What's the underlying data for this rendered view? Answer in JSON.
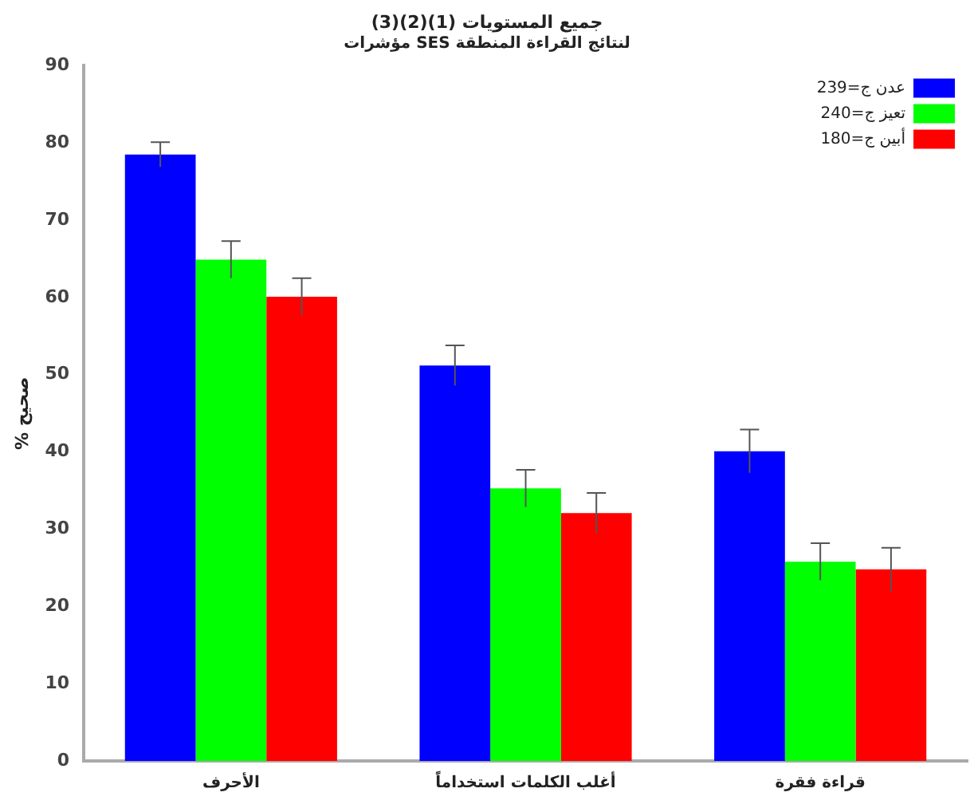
{
  "chart_data": {
    "type": "bar",
    "title": "جميع المستويات (1)(2)(3)",
    "subtitle": "مؤشرات SES لنتائج القراءة المنطقة",
    "ylabel": "% صحيح",
    "categories": [
      "الأحرف",
      "أغلب الكلمات استخداماً",
      "قراءة فقرة"
    ],
    "series": [
      {
        "name": "عدن ج=239",
        "color": "#0000ff",
        "values": [
          78.5,
          51.2,
          40.1
        ],
        "errors": [
          1.6,
          2.6,
          2.8
        ]
      },
      {
        "name": "تعيز ج=240",
        "color": "#00ff00",
        "values": [
          64.9,
          35.3,
          25.8
        ],
        "errors": [
          2.4,
          2.4,
          2.4
        ]
      },
      {
        "name": "أبين ج=180",
        "color": "#ff0000",
        "values": [
          60.1,
          32.1,
          24.8
        ],
        "errors": [
          2.4,
          2.6,
          2.8
        ]
      }
    ],
    "ylim": [
      0,
      90
    ],
    "yticks": [
      0,
      10,
      20,
      30,
      40,
      50,
      60,
      70,
      80,
      90
    ],
    "grid": false,
    "legend": "top right"
  }
}
